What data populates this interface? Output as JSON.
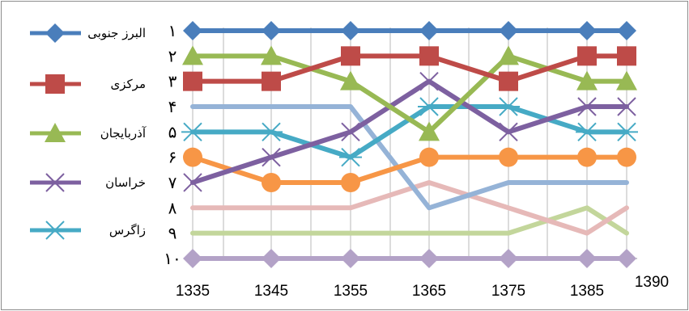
{
  "chart_data": {
    "type": "line",
    "title": "",
    "xlabel": "",
    "ylabel": "",
    "x": [
      1335,
      1345,
      1355,
      1365,
      1375,
      1385,
      1390
    ],
    "x_tick_labels": [
      "1335",
      "1345",
      "1355",
      "1365",
      "1375",
      "1385",
      "1390"
    ],
    "y_tick_labels": [
      "١",
      "٢",
      "٣",
      "۴",
      "۵",
      "۶",
      "٧",
      "٨",
      "٩",
      "١٠"
    ],
    "ylim": [
      10,
      1
    ],
    "y_axis_reversed": true,
    "grid": "vertical",
    "legend_position": "left",
    "series": [
      {
        "name": "البرز جنوبی",
        "color": "#4a7ebb",
        "marker": "diamond",
        "values": [
          1,
          1,
          1,
          1,
          1,
          1,
          1
        ]
      },
      {
        "name": "مرکزی",
        "color": "#be4b48",
        "marker": "square",
        "values": [
          3,
          3,
          2,
          2,
          3,
          2,
          2
        ]
      },
      {
        "name": "آذربایجان",
        "color": "#98b954",
        "marker": "triangle",
        "values": [
          2,
          2,
          3,
          5,
          2,
          3,
          3
        ]
      },
      {
        "name": "خراسان",
        "color": "#7d60a0",
        "marker": "x",
        "values": [
          7,
          6,
          5,
          3,
          5,
          4,
          4
        ]
      },
      {
        "name": "زاگرس",
        "color": "#46aac5",
        "marker": "star",
        "values": [
          5,
          5,
          6,
          4,
          4,
          5,
          5
        ]
      },
      {
        "name": "",
        "color": "#f79646",
        "marker": "circle",
        "values": [
          6,
          7,
          7,
          6,
          6,
          6,
          6
        ]
      },
      {
        "name": "",
        "color": "#95b3d7",
        "marker": "none",
        "values": [
          4,
          4,
          4,
          8,
          7,
          7,
          7
        ]
      },
      {
        "name": "",
        "color": "#e6b9b8",
        "marker": "none",
        "values": [
          8,
          8,
          8,
          7,
          8,
          9,
          8
        ]
      },
      {
        "name": "",
        "color": "#c3d69b",
        "marker": "none",
        "values": [
          9,
          9,
          9,
          9,
          9,
          8,
          9
        ]
      },
      {
        "name": "",
        "color": "#b3a2c7",
        "marker": "diamond",
        "values": [
          10,
          10,
          10,
          10,
          10,
          10,
          10
        ]
      }
    ]
  }
}
